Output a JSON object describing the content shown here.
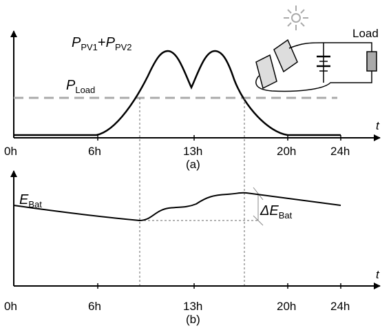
{
  "panel_a": {
    "curve_label": {
      "p1": "P",
      "s1": "PV1",
      "plus": "+",
      "p2": "P",
      "s2": "PV2"
    },
    "load_label": {
      "p": "P",
      "s": "Load"
    },
    "axis_label": "t",
    "x_ticks": [
      "0h",
      "6h",
      "13h",
      "20h",
      "24h"
    ],
    "caption": "(a)",
    "circuit_label": "Load"
  },
  "panel_b": {
    "curve_label": {
      "e": "E",
      "s": "Bat"
    },
    "delta_label": {
      "d": "ΔE",
      "s": "Bat"
    },
    "axis_label": "t",
    "x_ticks": [
      "0h",
      "6h",
      "13h",
      "20h",
      "24h"
    ],
    "caption": "(b)"
  }
}
